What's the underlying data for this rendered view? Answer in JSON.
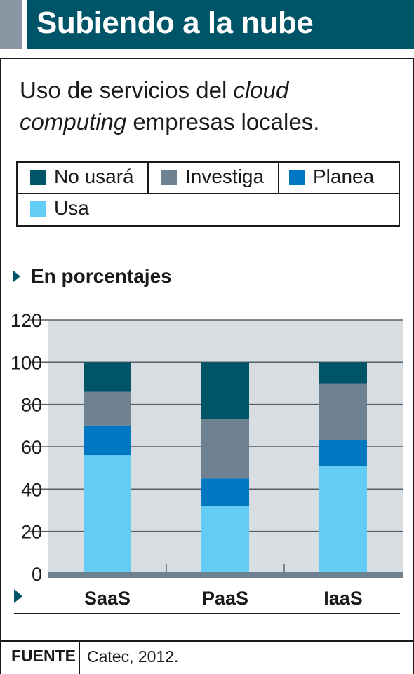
{
  "header": {
    "title": "Subiendo a la nube"
  },
  "subtitle": {
    "before": "Uso de servicios del ",
    "italic": "cloud computing",
    "after": " empresas locales."
  },
  "section_label": "En porcentajes",
  "source": {
    "label": "FUENTE",
    "text": "Catec, 2012."
  },
  "colors": {
    "header": "#005468",
    "header_accent": "#8a96a3",
    "plot_bg": "#d8dde1",
    "no_usara": "#005468",
    "investiga": "#6e8191",
    "planea": "#0077c2",
    "usa": "#63ccf5"
  },
  "chart_data": {
    "type": "bar",
    "stacked": true,
    "categories": [
      "SaaS",
      "PaaS",
      "IaaS"
    ],
    "series": [
      {
        "name": "Usa",
        "values": [
          56,
          32,
          51
        ],
        "color": "#63ccf5"
      },
      {
        "name": "Planea",
        "values": [
          14,
          13,
          12
        ],
        "color": "#0077c2"
      },
      {
        "name": "Investiga",
        "values": [
          16,
          28,
          27
        ],
        "color": "#6e8191"
      },
      {
        "name": "No usará",
        "values": [
          14,
          27,
          10
        ],
        "color": "#005468"
      }
    ],
    "legend_order": [
      "No usará",
      "Investiga",
      "Planea",
      "Usa"
    ],
    "ylim": [
      0,
      120
    ],
    "yticks": [
      0,
      20,
      40,
      60,
      80,
      100,
      120
    ],
    "grid": true,
    "legend_placement": "top"
  }
}
